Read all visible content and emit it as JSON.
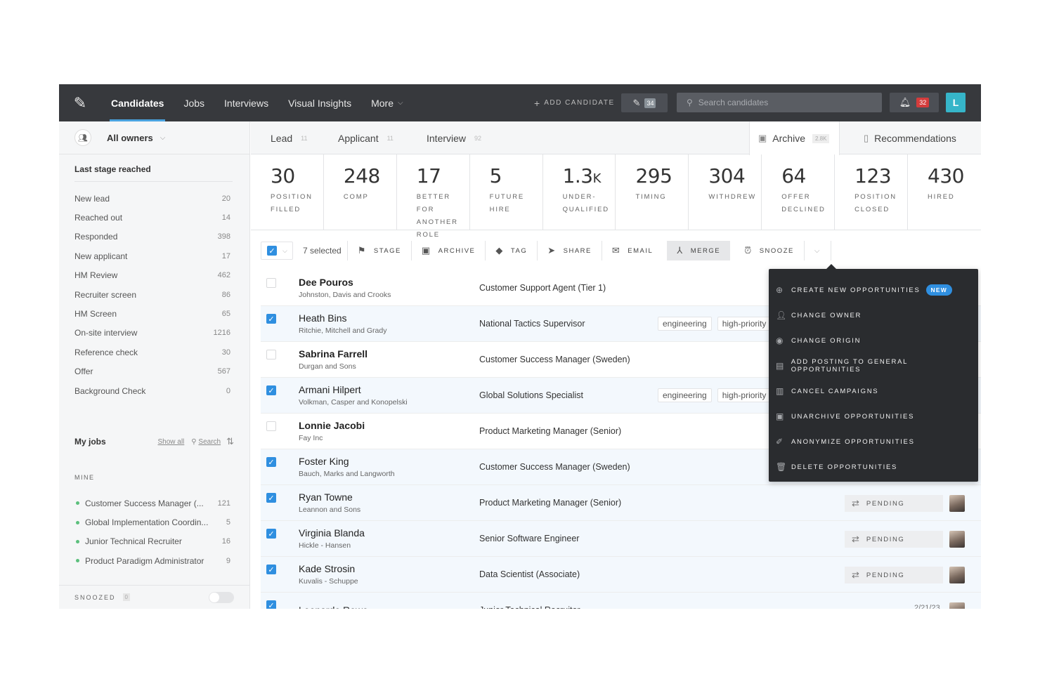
{
  "topbar": {
    "nav": [
      {
        "label": "Candidates"
      },
      {
        "label": "Jobs"
      },
      {
        "label": "Interviews"
      },
      {
        "label": "Visual Insights"
      },
      {
        "label": "More"
      }
    ],
    "add_candidate": "ADD CANDIDATE",
    "edit_count": "34",
    "search_placeholder": "Search candidates",
    "notifications": "32",
    "avatar_initial": "L"
  },
  "sidebar": {
    "owner_filter": "All owners",
    "section_title": "Last stage reached",
    "stages": [
      {
        "label": "New lead",
        "count": "20"
      },
      {
        "label": "Reached out",
        "count": "14"
      },
      {
        "label": "Responded",
        "count": "398"
      },
      {
        "label": "New applicant",
        "count": "17"
      },
      {
        "label": "HM Review",
        "count": "462"
      },
      {
        "label": "Recruiter screen",
        "count": "86"
      },
      {
        "label": "HM Screen",
        "count": "65"
      },
      {
        "label": "On-site interview",
        "count": "1216"
      },
      {
        "label": "Reference check",
        "count": "30"
      },
      {
        "label": "Offer",
        "count": "567"
      },
      {
        "label": "Background Check",
        "count": "0"
      }
    ],
    "my_jobs": {
      "title": "My jobs",
      "show_all": "Show all",
      "search": "Search",
      "mine_label": "MINE",
      "jobs": [
        {
          "label": "Customer Success Manager (...",
          "count": "121"
        },
        {
          "label": "Global Implementation Coordin...",
          "count": "5"
        },
        {
          "label": "Junior Technical Recruiter",
          "count": "16"
        },
        {
          "label": "Product Paradigm Administrator",
          "count": "9"
        }
      ]
    },
    "snoozed": {
      "label": "SNOOZED",
      "count": "0"
    }
  },
  "tabs": {
    "lead": {
      "label": "Lead",
      "count": "11"
    },
    "applicant": {
      "label": "Applicant",
      "count": "11"
    },
    "interview": {
      "label": "Interview",
      "count": "92"
    },
    "archive": {
      "label": "Archive",
      "count": "2.8K"
    },
    "recommendations": {
      "label": "Recommendations"
    }
  },
  "metrics": [
    {
      "value": "30",
      "label": "POSITION FILLED"
    },
    {
      "value": "248",
      "label": "COMP"
    },
    {
      "value": "17",
      "label": "BETTER FOR ANOTHER ROLE"
    },
    {
      "value": "5",
      "label": "FUTURE HIRE"
    },
    {
      "value": "1.3",
      "suffix": "K",
      "label": "UNDER-QUALIFIED"
    },
    {
      "value": "295",
      "label": "TIMING"
    },
    {
      "value": "304",
      "label": "WITHDREW"
    },
    {
      "value": "64",
      "label": "OFFER DECLINED"
    },
    {
      "value": "123",
      "label": "POSITION CLOSED"
    },
    {
      "value": "430",
      "label": "HIRED"
    }
  ],
  "actions": {
    "selected": "7 selected",
    "stage": "STAGE",
    "archive": "ARCHIVE",
    "tag": "TAG",
    "share": "SHARE",
    "email": "EMAIL",
    "merge": "MERGE",
    "snooze": "SNOOZE"
  },
  "candidates": [
    {
      "name": "Dee Pouros",
      "company": "Johnston, Davis and Crooks",
      "role": "Customer Support Agent (Tier 1)",
      "selected": false,
      "bold": true,
      "tags": []
    },
    {
      "name": "Heath Bins",
      "company": "Ritchie, Mitchell and Grady",
      "role": "National Tactics Supervisor",
      "selected": true,
      "bold": false,
      "tags": [
        "engineering",
        "high-priority"
      ]
    },
    {
      "name": "Sabrina Farrell",
      "company": "Durgan and Sons",
      "role": "Customer Success Manager (Sweden)",
      "selected": false,
      "bold": true,
      "tags": []
    },
    {
      "name": "Armani Hilpert",
      "company": "Volkman, Casper and Konopelski",
      "role": "Global Solutions Specialist",
      "selected": true,
      "bold": false,
      "tags": [
        "engineering",
        "high-priority"
      ]
    },
    {
      "name": "Lonnie Jacobi",
      "company": "Fay Inc",
      "role": "Product Marketing Manager (Senior)",
      "selected": false,
      "bold": true,
      "tags": []
    },
    {
      "name": "Foster King",
      "company": "Bauch, Marks and Langworth",
      "role": "Customer Success Manager (Sweden)",
      "selected": true,
      "bold": false,
      "tags": []
    },
    {
      "name": "Ryan Towne",
      "company": "Leannon and Sons",
      "role": "Product Marketing Manager (Senior)",
      "selected": true,
      "bold": false,
      "tags": [],
      "status": "PENDING"
    },
    {
      "name": "Virginia Blanda",
      "company": "Hickle - Hansen",
      "role": "Senior Software Engineer",
      "selected": true,
      "bold": false,
      "tags": [],
      "status": "PENDING"
    },
    {
      "name": "Kade Strosin",
      "company": "Kuvalis - Schuppe",
      "role": "Data Scientist (Associate)",
      "selected": true,
      "bold": false,
      "tags": [],
      "status": "PENDING"
    },
    {
      "name": "Leonardo Rowe",
      "company": "",
      "role": "Junior Technical Recruiter",
      "selected": true,
      "bold": false,
      "tags": [],
      "date": "2/21/23"
    }
  ],
  "menu": {
    "items": [
      {
        "label": "CREATE NEW OPPORTUNITIES",
        "badge": "NEW"
      },
      {
        "label": "CHANGE OWNER"
      },
      {
        "label": "CHANGE ORIGIN"
      },
      {
        "label": "ADD POSTING TO GENERAL OPPORTUNITIES"
      },
      {
        "label": "CANCEL CAMPAIGNS"
      },
      {
        "label": "UNARCHIVE OPPORTUNITIES"
      },
      {
        "label": "ANONYMIZE OPPORTUNITIES"
      },
      {
        "label": "DELETE OPPORTUNITIES"
      }
    ]
  }
}
